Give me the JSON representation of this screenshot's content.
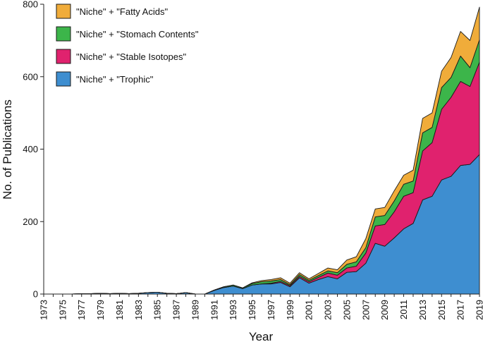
{
  "chart_data": {
    "type": "area",
    "stacked": true,
    "xlabel": "Year",
    "ylabel": "No. of Publications",
    "ylim": [
      0,
      800
    ],
    "yticks": [
      0,
      200,
      400,
      600,
      800
    ],
    "xlim": [
      1973,
      2019
    ],
    "xticks": [
      "1973",
      "1975",
      "1977",
      "1979",
      "1981",
      "1983",
      "1985",
      "1987",
      "1989",
      "1991",
      "1993",
      "1995",
      "1997",
      "1999",
      "2001",
      "2003",
      "2005",
      "2007",
      "2009",
      "2011",
      "2013",
      "2015",
      "2017",
      "2019"
    ],
    "legend_position": "top-left",
    "x": [
      1973,
      1974,
      1975,
      1976,
      1977,
      1978,
      1979,
      1980,
      1981,
      1982,
      1983,
      1984,
      1985,
      1986,
      1987,
      1988,
      1989,
      1990,
      1991,
      1992,
      1993,
      1994,
      1995,
      1996,
      1997,
      1998,
      1999,
      2000,
      2001,
      2002,
      2003,
      2004,
      2005,
      2006,
      2007,
      2008,
      2009,
      2010,
      2011,
      2012,
      2013,
      2014,
      2015,
      2016,
      2017,
      2018,
      2019
    ],
    "series": [
      {
        "name": "\"Niche\" + \"Trophic\"",
        "color": "#3e8ed0",
        "values": [
          0,
          0,
          0,
          0,
          1,
          1,
          2,
          1,
          2,
          1,
          2,
          4,
          5,
          2,
          1,
          4,
          0,
          0,
          10,
          18,
          22,
          15,
          25,
          28,
          28,
          32,
          20,
          45,
          30,
          40,
          48,
          42,
          60,
          62,
          85,
          140,
          132,
          155,
          180,
          195,
          260,
          270,
          315,
          325,
          355,
          358,
          385
        ]
      },
      {
        "name": "\"Niche\" + \"Stable Isotopes\"",
        "color": "#e0226e",
        "values": [
          0,
          0,
          0,
          0,
          0,
          0,
          0,
          0,
          0,
          0,
          0,
          0,
          0,
          0,
          0,
          0,
          0,
          0,
          0,
          0,
          0,
          0,
          0,
          0,
          2,
          3,
          3,
          4,
          4,
          6,
          10,
          10,
          12,
          15,
          28,
          48,
          60,
          72,
          90,
          85,
          135,
          148,
          195,
          218,
          232,
          215,
          255
        ]
      },
      {
        "name": "\"Niche\" + \"Stomach Contents\"",
        "color": "#3cb54a",
        "values": [
          0,
          0,
          0,
          0,
          0,
          0,
          0,
          0,
          0,
          0,
          0,
          0,
          0,
          0,
          0,
          0,
          0,
          0,
          1,
          2,
          3,
          2,
          4,
          6,
          6,
          5,
          3,
          5,
          4,
          5,
          6,
          7,
          10,
          12,
          15,
          25,
          25,
          30,
          33,
          32,
          50,
          42,
          60,
          55,
          70,
          52,
          62
        ]
      },
      {
        "name": "\"Niche\" + \"Fatty Acids\"",
        "color": "#f0ac3a",
        "values": [
          0,
          0,
          0,
          0,
          0,
          0,
          0,
          0,
          0,
          0,
          0,
          0,
          0,
          0,
          0,
          0,
          0,
          0,
          0,
          0,
          0,
          0,
          2,
          3,
          4,
          5,
          4,
          5,
          4,
          6,
          8,
          8,
          12,
          14,
          25,
          22,
          22,
          28,
          25,
          30,
          40,
          40,
          45,
          55,
          68,
          75,
          90
        ]
      }
    ]
  }
}
